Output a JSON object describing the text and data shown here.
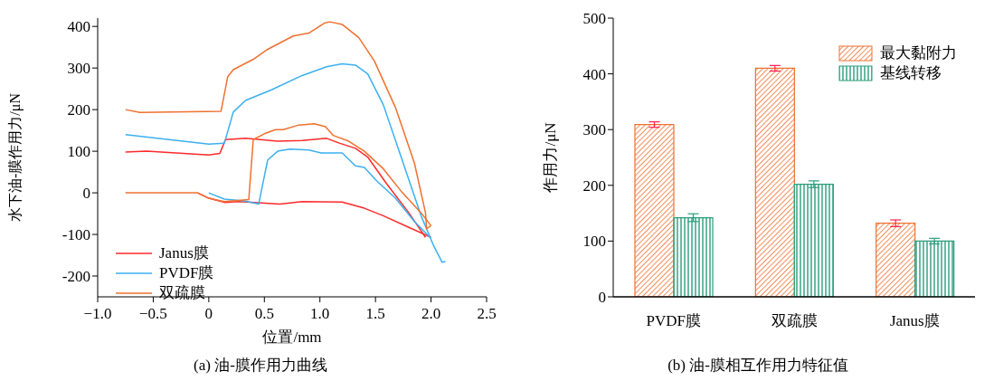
{
  "chart_data": [
    {
      "type": "line",
      "title": "(a) 油-膜作用力曲线",
      "xlabel": "位置/mm",
      "ylabel": "水下油-膜作用力/μN",
      "xlim": [
        -1.0,
        2.5
      ],
      "xticks": [
        {
          "value": -1,
          "label": "−1.0"
        },
        {
          "value": -0.5,
          "label": "−0.5"
        },
        0,
        0.5,
        {
          "value": 1,
          "label": "1.0"
        },
        1.5,
        {
          "value": 2,
          "label": "2.0"
        },
        2.5
      ],
      "ylim": [
        -250,
        420
      ],
      "yticks": [
        -200,
        -100,
        0,
        100,
        200,
        300,
        400
      ],
      "legend": "bottom left",
      "line_style": "solid",
      "marker": "none",
      "series": [
        {
          "name": "Janus膜",
          "color": "#ff2a2a",
          "x": [
            -0.75,
            -0.56,
            0,
            0.1,
            0.15,
            0.33,
            0.62,
            0.84,
            1.06,
            1.18,
            1.32,
            1.43,
            1.6,
            1.8,
            1.95
          ],
          "values": [
            98,
            100,
            91,
            95,
            128,
            131,
            124,
            126,
            131,
            119,
            107,
            86,
            22,
            -48,
            -107
          ]
        },
        {
          "color": "#ff2a2a",
          "x": [
            -0.1,
            0,
            0.14,
            0.28,
            0.64,
            0.84,
            1.2,
            1.4,
            1.57,
            1.8,
            2.0
          ],
          "values": [
            0,
            -13,
            -23,
            -21,
            -27,
            -21,
            -22,
            -37,
            -55,
            -83,
            -107
          ]
        },
        {
          "name": "PVDF膜",
          "color": "#3cb0f0",
          "x": [
            -0.75,
            0,
            0.14,
            0.22,
            0.33,
            0.56,
            0.84,
            1.06,
            1.2,
            1.32,
            1.43,
            1.57,
            1.74,
            1.91,
            2.02,
            2.1,
            2.13
          ],
          "values": [
            140,
            117,
            119,
            194,
            222,
            247,
            282,
            303,
            310,
            307,
            286,
            212,
            79,
            -55,
            -125,
            -167,
            -165
          ]
        },
        {
          "color": "#3cb0f0",
          "x": [
            0,
            0.14,
            0.33,
            0.45,
            0.47,
            0.53,
            0.62,
            0.73,
            0.9,
            1.01,
            1.12,
            1.2,
            1.32,
            1.4,
            1.51,
            1.68,
            1.85,
            1.99
          ],
          "values": [
            0,
            -15,
            -20,
            -27,
            1,
            79,
            100,
            105,
            103,
            96,
            96,
            96,
            65,
            61,
            29,
            -13,
            -69,
            -107
          ]
        },
        {
          "name": "双疏膜",
          "color": "#f07030",
          "x": [
            -0.75,
            -0.62,
            0.11,
            0.17,
            0.22,
            0.4,
            0.53,
            0.76,
            0.9,
            1.04,
            1.09,
            1.2,
            1.35,
            1.49,
            1.68,
            1.85,
            1.95,
            1.96,
            2.0
          ],
          "values": [
            200,
            193,
            196,
            279,
            296,
            321,
            345,
            377,
            384,
            408,
            411,
            405,
            373,
            317,
            205,
            72,
            -48,
            -86,
            -79
          ]
        },
        {
          "color": "#f07030",
          "x": [
            -0.75,
            -0.1,
            0,
            0.14,
            0.36,
            0.4,
            0.5,
            0.6,
            0.67,
            0.81,
            0.95,
            1.05,
            1.12,
            1.26,
            1.4,
            1.57,
            1.74,
            1.91,
            2.0
          ],
          "values": [
            0,
            0,
            -13,
            -21,
            -16,
            128,
            142,
            152,
            152,
            163,
            166,
            159,
            138,
            124,
            100,
            58,
            1,
            -48,
            -79
          ]
        }
      ]
    },
    {
      "type": "bar",
      "title": "(b) 油-膜相互作用力特征值",
      "ylabel": "作用力/μN",
      "categories": [
        "PVDF膜",
        "双疏膜",
        "Janus膜"
      ],
      "ylim": [
        0,
        500
      ],
      "yticks": [
        0,
        100,
        200,
        300,
        400,
        500
      ],
      "legend": "top right",
      "series": [
        {
          "name": "最大黏附力",
          "color": "#f07030",
          "values": [
            309,
            410,
            132
          ],
          "errors": [
            5,
            5,
            6
          ]
        },
        {
          "name": "基线转移",
          "color": "#2a9d7a",
          "values": [
            142,
            202,
            100
          ],
          "errors": [
            7,
            6,
            5
          ]
        }
      ]
    }
  ]
}
